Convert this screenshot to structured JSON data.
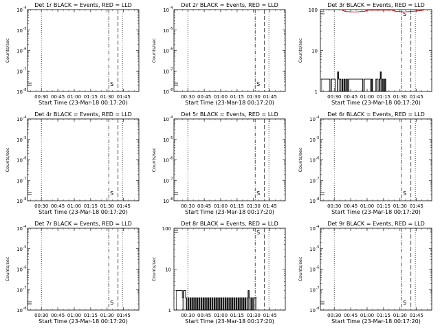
{
  "chart_data": [
    {
      "type": "line",
      "title": "Det 1r BLACK = Events, RED = LLD",
      "xlabel": "Start Time (23-Mar-18 00:17:20)",
      "ylabel": "Counts/sec",
      "yscale": "log",
      "ylim": [
        1e-08,
        0.0001
      ],
      "ytick_exps": [
        "-8",
        "-7",
        "-6",
        "-5",
        "-4"
      ],
      "xticks": [
        "00:30",
        "00:45",
        "01:00",
        "01:15",
        "01:30",
        "01:45"
      ],
      "xlim_minutes": [
        17.33,
        119
      ],
      "dotted_lines": [
        30,
        104
      ],
      "dashdot_line": 91.5,
      "dashed_line": 100,
      "annotation": "S",
      "series": []
    },
    {
      "type": "line",
      "title": "Det 2r BLACK = Events, RED = LLD",
      "xlabel": "Start Time (23-Mar-18 00:17:20)",
      "ylabel": "Counts/sec",
      "yscale": "log",
      "ylim": [
        1e-08,
        0.0001
      ],
      "ytick_exps": [
        "-8",
        "-7",
        "-6",
        "-5",
        "-4"
      ],
      "xticks": [
        "00:30",
        "00:45",
        "01:00",
        "01:15",
        "01:30",
        "01:45"
      ],
      "xlim_minutes": [
        17.33,
        119
      ],
      "dotted_lines": [
        30,
        104
      ],
      "dashdot_line": 91.5,
      "dashed_line": 100,
      "annotation": "S",
      "series": []
    },
    {
      "type": "line",
      "title": "Det 3r BLACK = Events, RED = LLD",
      "xlabel": "Start Time (23-Mar-18 00:17:20)",
      "ylabel": "Counts/sec",
      "yscale": "log",
      "ylim": [
        1,
        100
      ],
      "ytick_labels": [
        "1",
        "10",
        "100"
      ],
      "xticks": [
        "00:30",
        "00:45",
        "01:00",
        "01:15",
        "01:30",
        "01:45"
      ],
      "xlim_minutes": [
        17.33,
        119
      ],
      "dotted_lines": [
        30,
        104
      ],
      "dashdot_line": 91.5,
      "dashed_line": 100,
      "annotation": "S",
      "series": [
        {
          "color": "#000000",
          "style": "events",
          "x": [
            18,
            26,
            27,
            31,
            33,
            34,
            36,
            37,
            38,
            39,
            40,
            41,
            42,
            43,
            56,
            57,
            63,
            64,
            65,
            68,
            70,
            71,
            72,
            73,
            74,
            75,
            76,
            77
          ],
          "y": [
            2,
            1,
            2,
            1,
            3,
            2,
            1,
            2,
            1,
            2,
            1,
            2,
            1,
            2,
            1,
            2,
            1,
            2,
            1,
            2,
            1,
            2,
            3,
            1,
            2,
            1,
            2,
            1
          ]
        },
        {
          "color": "#cc0000",
          "style": "lld",
          "x": [
            37,
            38,
            39,
            40,
            42,
            44,
            46,
            48,
            50,
            52,
            54,
            56,
            58,
            59,
            60,
            82,
            83,
            84,
            85,
            86,
            88,
            90,
            92,
            94,
            96,
            98,
            100,
            102,
            104,
            106,
            108,
            110,
            112
          ],
          "y": [
            97,
            94,
            92,
            90,
            89,
            88,
            88,
            87,
            88,
            89,
            90,
            91,
            93,
            95,
            97,
            98,
            96,
            94,
            92,
            91,
            90,
            89,
            88,
            88,
            89,
            90,
            91,
            92,
            93,
            94,
            95,
            97,
            98
          ]
        }
      ]
    },
    {
      "type": "line",
      "title": "Det 4r BLACK = Events, RED = LLD",
      "xlabel": "Start Time (23-Mar-18 00:17:20)",
      "ylabel": "Counts/sec",
      "yscale": "log",
      "ylim": [
        1e-08,
        0.0001
      ],
      "ytick_exps": [
        "-8",
        "-7",
        "-6",
        "-5",
        "-4"
      ],
      "xticks": [
        "00:30",
        "00:45",
        "01:00",
        "01:15",
        "01:30",
        "01:45"
      ],
      "xlim_minutes": [
        17.33,
        119
      ],
      "dotted_lines": [
        30,
        104
      ],
      "dashdot_line": 91.5,
      "dashed_line": 100,
      "annotation": "S",
      "series": []
    },
    {
      "type": "line",
      "title": "Det 5r BLACK = Events, RED = LLD",
      "xlabel": "Start Time (23-Mar-18 00:17:20)",
      "ylabel": "Counts/sec",
      "yscale": "log",
      "ylim": [
        1e-08,
        0.0001
      ],
      "ytick_exps": [
        "-8",
        "-7",
        "-6",
        "-5",
        "-4"
      ],
      "xticks": [
        "00:30",
        "00:45",
        "01:00",
        "01:15",
        "01:30",
        "01:45"
      ],
      "xlim_minutes": [
        17.33,
        119
      ],
      "dotted_lines": [
        30,
        104
      ],
      "dashdot_line": 91.5,
      "dashed_line": 100,
      "annotation": "S",
      "series": []
    },
    {
      "type": "line",
      "title": "Det 6r BLACK = Events, RED = LLD",
      "xlabel": "Start Time (23-Mar-18 00:17:20)",
      "ylabel": "Counts/sec",
      "yscale": "log",
      "ylim": [
        1e-08,
        0.0001
      ],
      "ytick_exps": [
        "-8",
        "-7",
        "-6",
        "-5",
        "-4"
      ],
      "xticks": [
        "00:30",
        "00:45",
        "01:00",
        "01:15",
        "01:30",
        "01:45"
      ],
      "xlim_minutes": [
        17.33,
        119
      ],
      "dotted_lines": [
        30,
        104
      ],
      "dashdot_line": 91.5,
      "dashed_line": 100,
      "annotation": "S",
      "series": []
    },
    {
      "type": "line",
      "title": "Det 7r BLACK = Events, RED = LLD",
      "xlabel": "Start Time (23-Mar-18 00:17:20)",
      "ylabel": "Counts/sec",
      "yscale": "log",
      "ylim": [
        1e-08,
        0.0001
      ],
      "ytick_exps": [
        "-8",
        "-7",
        "-6",
        "-5",
        "-4"
      ],
      "xticks": [
        "00:30",
        "00:45",
        "01:00",
        "01:15",
        "01:30",
        "01:45"
      ],
      "xlim_minutes": [
        17.33,
        119
      ],
      "dotted_lines": [
        30,
        104
      ],
      "dashdot_line": 91.5,
      "dashed_line": 100,
      "annotation": "S",
      "series": []
    },
    {
      "type": "line",
      "title": "Det 8r BLACK = Events, RED = LLD",
      "xlabel": "Start Time (23-Mar-18 00:17:20)",
      "ylabel": "Counts/sec",
      "yscale": "log",
      "ylim": [
        1,
        100
      ],
      "ytick_labels": [
        "1",
        "10",
        "100"
      ],
      "xticks": [
        "00:30",
        "00:45",
        "01:00",
        "01:15",
        "01:30",
        "01:45"
      ],
      "xlim_minutes": [
        17.33,
        119
      ],
      "dotted_lines": [
        30,
        104
      ],
      "dashdot_line": 91.5,
      "dashed_line": 100,
      "annotation": "S",
      "series": [
        {
          "color": "#000000",
          "style": "events",
          "x": [
            19,
            25,
            26,
            28,
            29,
            30,
            31,
            32,
            33,
            34,
            35,
            36,
            37,
            38,
            39,
            40,
            41,
            42,
            43,
            44,
            45,
            46,
            47,
            48,
            49,
            50,
            51,
            52,
            53,
            54,
            55,
            56,
            57,
            58,
            59,
            60,
            61,
            62,
            63,
            64,
            65,
            66,
            67,
            68,
            69,
            70,
            71,
            72,
            73,
            74,
            75,
            76,
            77,
            78,
            79,
            80,
            81,
            82,
            83,
            84,
            85,
            86,
            87,
            88,
            89,
            90,
            91,
            92
          ],
          "y": [
            3,
            2,
            3,
            2,
            1,
            2,
            1,
            2,
            1,
            2,
            1,
            2,
            1,
            2,
            1,
            2,
            1,
            2,
            1,
            2,
            1,
            2,
            1,
            2,
            1,
            2,
            1,
            2,
            1,
            2,
            1,
            2,
            1,
            2,
            1,
            2,
            1,
            2,
            1,
            2,
            1,
            2,
            1,
            2,
            1,
            2,
            1,
            2,
            1,
            2,
            1,
            2,
            1,
            2,
            1,
            2,
            1,
            2,
            1,
            2,
            3,
            2,
            1,
            2,
            1,
            2,
            2,
            2
          ]
        }
      ]
    },
    {
      "type": "line",
      "title": "Det 9r BLACK = Events, RED = LLD",
      "xlabel": "Start Time (23-Mar-18 00:17:20)",
      "ylabel": "Counts/sec",
      "yscale": "log",
      "ylim": [
        1e-08,
        0.0001
      ],
      "ytick_exps": [
        "-8",
        "-7",
        "-6",
        "-5",
        "-4"
      ],
      "xticks": [
        "00:30",
        "00:45",
        "01:00",
        "01:15",
        "01:30",
        "01:45"
      ],
      "xlim_minutes": [
        17.33,
        119
      ],
      "dotted_lines": [
        30,
        104
      ],
      "dashdot_line": 91.5,
      "dashed_line": 100,
      "annotation": "S",
      "series": []
    }
  ]
}
